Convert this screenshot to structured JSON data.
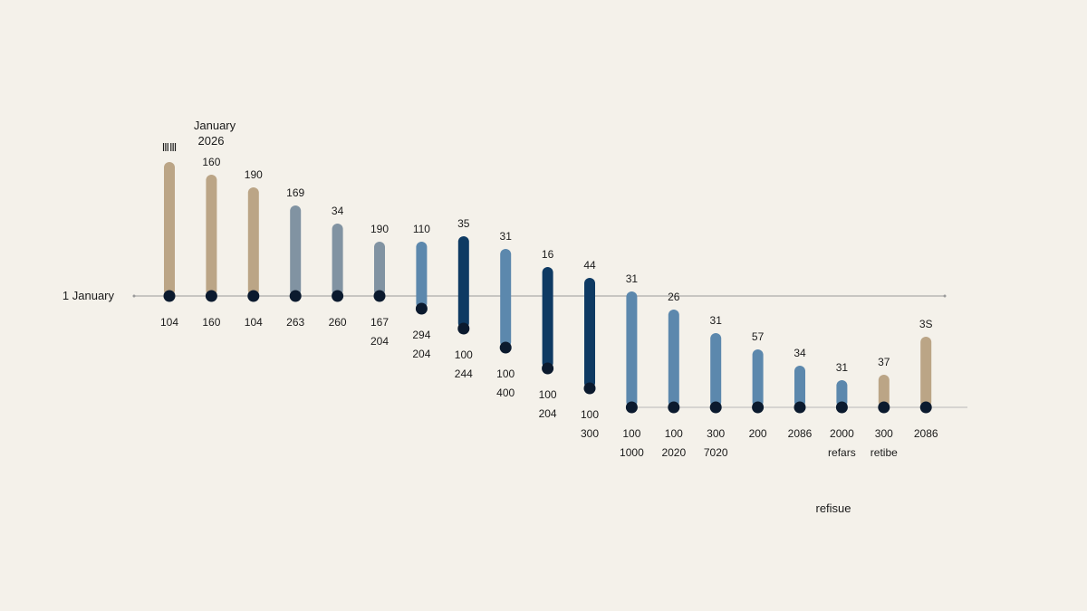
{
  "chart_data": {
    "type": "bar",
    "title": "January\n2026",
    "title_lines": [
      "January",
      "2026"
    ],
    "corner_mark": "ⅢⅢ",
    "upper_baseline_label": "1 January",
    "footer_label": "refisue",
    "grid": false,
    "legend": "none",
    "colors": {
      "tan": "#bba586",
      "slate": "#8193a2",
      "steel": "#5c88ad",
      "navy": "#0e3a63",
      "dot": "#0b1a2e",
      "axis": "#9a9a9a",
      "background": "#f4f1ea"
    },
    "bars": [
      {
        "top": "",
        "value": 148,
        "bottom": [
          "104"
        ],
        "color": "tan",
        "baseline": "upper"
      },
      {
        "top": "160",
        "value": 134,
        "bottom": [
          "160"
        ],
        "color": "tan",
        "baseline": "upper"
      },
      {
        "top": "190",
        "value": 120,
        "bottom": [
          "104"
        ],
        "color": "tan",
        "baseline": "upper"
      },
      {
        "top": "169",
        "value": 100,
        "bottom": [
          "263"
        ],
        "color": "slate",
        "baseline": "upper"
      },
      {
        "top": "34",
        "value": 80,
        "bottom": [
          "260"
        ],
        "color": "slate",
        "baseline": "upper"
      },
      {
        "top": "190",
        "value": 60,
        "bottom": [
          "167",
          "204"
        ],
        "color": "slate",
        "baseline": "upper"
      },
      {
        "top": "110",
        "value": 60,
        "bottom": [
          "294",
          "204"
        ],
        "color": "steel",
        "baseline": "upper",
        "extend": 14
      },
      {
        "top": "35",
        "value": 66,
        "bottom": [
          "100",
          "244"
        ],
        "color": "navy",
        "baseline": "upper",
        "extend": 36
      },
      {
        "top": "31",
        "value": 52,
        "bottom": [
          "100",
          "400"
        ],
        "color": "steel",
        "baseline": "upper",
        "extend": 57
      },
      {
        "top": "16",
        "value": 32,
        "bottom": [
          "100",
          "204"
        ],
        "color": "navy",
        "baseline": "upper",
        "extend": 80
      },
      {
        "top": "44",
        "value": 20,
        "bottom": [
          "100",
          "300"
        ],
        "color": "navy",
        "baseline": "upper",
        "extend": 102
      },
      {
        "top": "31",
        "value": 128,
        "bottom": [
          "100",
          "1000"
        ],
        "color": "steel",
        "baseline": "lower"
      },
      {
        "top": "26",
        "value": 108,
        "bottom": [
          "100",
          "2020"
        ],
        "color": "steel",
        "baseline": "lower"
      },
      {
        "top": "31",
        "value": 82,
        "bottom": [
          "300",
          "7020"
        ],
        "color": "steel",
        "baseline": "lower"
      },
      {
        "top": "57",
        "value": 64,
        "bottom": [
          "200"
        ],
        "color": "steel",
        "baseline": "lower"
      },
      {
        "top": "34",
        "value": 46,
        "bottom": [
          "2086"
        ],
        "color": "steel",
        "baseline": "lower"
      },
      {
        "top": "31",
        "value": 30,
        "bottom": [
          "2000",
          "refars"
        ],
        "color": "steel",
        "baseline": "lower"
      },
      {
        "top": "37",
        "value": 36,
        "bottom": [
          "300",
          "retibe"
        ],
        "color": "tan",
        "baseline": "lower"
      },
      {
        "top": "3S",
        "value": 78,
        "bottom": [
          "2086"
        ],
        "color": "tan",
        "baseline": "lower"
      }
    ]
  }
}
